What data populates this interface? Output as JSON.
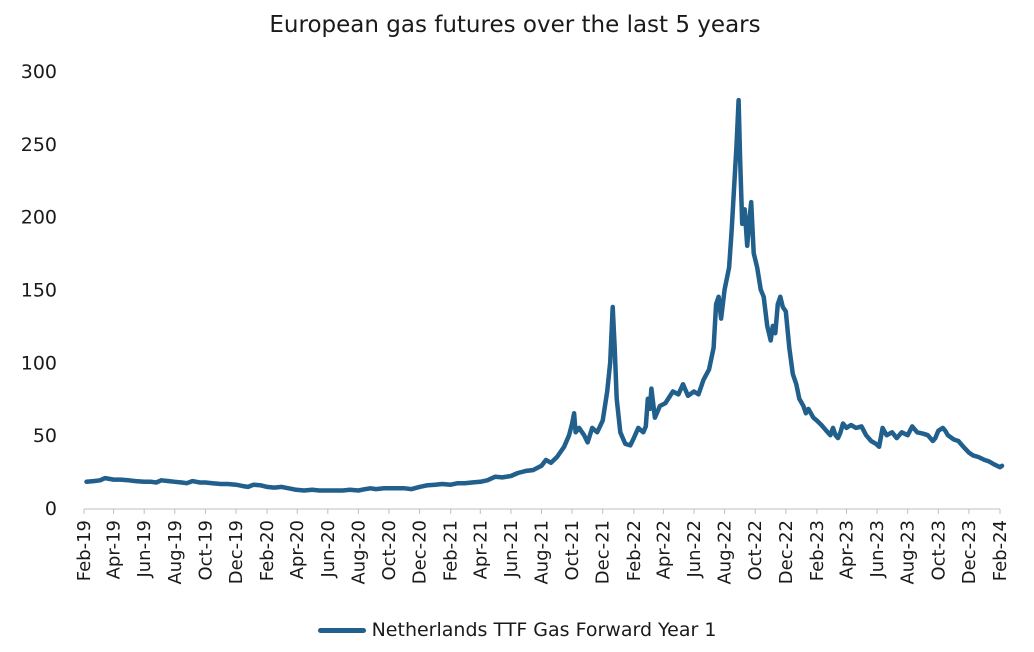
{
  "chart_data": {
    "type": "line",
    "title": "European gas futures over the last 5 years",
    "xlabel": "",
    "ylabel": "",
    "ylim": [
      0,
      300
    ],
    "yticks": [
      0,
      50,
      100,
      150,
      200,
      250,
      300
    ],
    "xticks": [
      "Feb-19",
      "Apr-19",
      "Jun-19",
      "Aug-19",
      "Oct-19",
      "Dec-19",
      "Feb-20",
      "Apr-20",
      "Jun-20",
      "Aug-20",
      "Oct-20",
      "Dec-20",
      "Feb-21",
      "Apr-21",
      "Jun-21",
      "Aug-21",
      "Oct-21",
      "Dec-21",
      "Feb-22",
      "Apr-22",
      "Jun-22",
      "Aug-22",
      "Oct-22",
      "Dec-22",
      "Feb-23",
      "Apr-23",
      "Jun-23",
      "Aug-23",
      "Oct-23",
      "Dec-23",
      "Feb-24"
    ],
    "grid": false,
    "legend_position": "bottom",
    "series": [
      {
        "name": "Netherlands TTF Gas Forward Year 1",
        "color": "#215f8c",
        "points": [
          [
            "2019-02-06",
            18
          ],
          [
            "2019-02-20",
            18.5
          ],
          [
            "2019-03-05",
            19
          ],
          [
            "2019-03-15",
            20.5
          ],
          [
            "2019-04-01",
            19.5
          ],
          [
            "2019-04-15",
            19.5
          ],
          [
            "2019-05-01",
            19
          ],
          [
            "2019-05-15",
            18.5
          ],
          [
            "2019-06-01",
            18
          ],
          [
            "2019-06-15",
            18
          ],
          [
            "2019-06-25",
            17.5
          ],
          [
            "2019-07-05",
            19
          ],
          [
            "2019-07-20",
            18.5
          ],
          [
            "2019-08-01",
            18
          ],
          [
            "2019-08-15",
            17.5
          ],
          [
            "2019-08-25",
            17
          ],
          [
            "2019-09-05",
            18.5
          ],
          [
            "2019-09-20",
            17.5
          ],
          [
            "2019-10-01",
            17.5
          ],
          [
            "2019-10-15",
            17
          ],
          [
            "2019-11-01",
            16.5
          ],
          [
            "2019-11-15",
            16.5
          ],
          [
            "2019-12-01",
            16
          ],
          [
            "2019-12-15",
            15
          ],
          [
            "2019-12-25",
            14.5
          ],
          [
            "2020-01-05",
            16
          ],
          [
            "2020-01-20",
            15.5
          ],
          [
            "2020-02-01",
            14.5
          ],
          [
            "2020-02-15",
            14
          ],
          [
            "2020-03-01",
            14.5
          ],
          [
            "2020-03-15",
            13.5
          ],
          [
            "2020-03-30",
            12.5
          ],
          [
            "2020-04-15",
            12
          ],
          [
            "2020-05-01",
            12.5
          ],
          [
            "2020-05-15",
            12
          ],
          [
            "2020-06-01",
            12
          ],
          [
            "2020-06-15",
            12
          ],
          [
            "2020-07-01",
            12
          ],
          [
            "2020-07-15",
            12.5
          ],
          [
            "2020-08-01",
            12
          ],
          [
            "2020-08-15",
            13
          ],
          [
            "2020-08-25",
            13.5
          ],
          [
            "2020-09-05",
            13
          ],
          [
            "2020-09-20",
            13.5
          ],
          [
            "2020-10-01",
            13.5
          ],
          [
            "2020-10-15",
            13.5
          ],
          [
            "2020-11-01",
            13.5
          ],
          [
            "2020-11-15",
            13
          ],
          [
            "2020-12-01",
            14.5
          ],
          [
            "2020-12-15",
            15.5
          ],
          [
            "2021-01-01",
            16
          ],
          [
            "2021-01-15",
            16.5
          ],
          [
            "2021-02-01",
            16
          ],
          [
            "2021-02-15",
            17
          ],
          [
            "2021-03-01",
            17
          ],
          [
            "2021-03-15",
            17.5
          ],
          [
            "2021-04-01",
            18
          ],
          [
            "2021-04-15",
            19
          ],
          [
            "2021-05-01",
            21.5
          ],
          [
            "2021-05-15",
            21
          ],
          [
            "2021-06-01",
            22
          ],
          [
            "2021-06-15",
            24
          ],
          [
            "2021-07-01",
            25.5
          ],
          [
            "2021-07-15",
            26
          ],
          [
            "2021-08-01",
            29
          ],
          [
            "2021-08-10",
            33
          ],
          [
            "2021-08-20",
            31
          ],
          [
            "2021-09-01",
            35
          ],
          [
            "2021-09-15",
            42
          ],
          [
            "2021-09-25",
            50
          ],
          [
            "2021-10-01",
            58
          ],
          [
            "2021-10-05",
            65
          ],
          [
            "2021-10-08",
            52
          ],
          [
            "2021-10-15",
            55
          ],
          [
            "2021-10-25",
            50
          ],
          [
            "2021-11-01",
            45
          ],
          [
            "2021-11-10",
            55
          ],
          [
            "2021-11-20",
            52
          ],
          [
            "2021-12-01",
            60
          ],
          [
            "2021-12-10",
            80
          ],
          [
            "2021-12-16",
            100
          ],
          [
            "2021-12-21",
            138
          ],
          [
            "2021-12-25",
            110
          ],
          [
            "2021-12-29",
            75
          ],
          [
            "2022-01-05",
            52
          ],
          [
            "2022-01-15",
            44
          ],
          [
            "2022-01-25",
            43
          ],
          [
            "2022-02-01",
            48
          ],
          [
            "2022-02-10",
            55
          ],
          [
            "2022-02-20",
            52
          ],
          [
            "2022-02-25",
            56
          ],
          [
            "2022-03-01",
            75
          ],
          [
            "2022-03-05",
            68
          ],
          [
            "2022-03-08",
            82
          ],
          [
            "2022-03-15",
            62
          ],
          [
            "2022-03-25",
            70
          ],
          [
            "2022-04-05",
            72
          ],
          [
            "2022-04-20",
            80
          ],
          [
            "2022-05-01",
            78
          ],
          [
            "2022-05-10",
            85
          ],
          [
            "2022-05-20",
            77
          ],
          [
            "2022-06-01",
            80
          ],
          [
            "2022-06-10",
            78
          ],
          [
            "2022-06-20",
            88
          ],
          [
            "2022-07-01",
            95
          ],
          [
            "2022-07-10",
            110
          ],
          [
            "2022-07-15",
            140
          ],
          [
            "2022-07-20",
            145
          ],
          [
            "2022-07-25",
            130
          ],
          [
            "2022-08-01",
            150
          ],
          [
            "2022-08-10",
            165
          ],
          [
            "2022-08-15",
            190
          ],
          [
            "2022-08-20",
            220
          ],
          [
            "2022-08-25",
            250
          ],
          [
            "2022-08-29",
            280
          ],
          [
            "2022-09-01",
            240
          ],
          [
            "2022-09-05",
            195
          ],
          [
            "2022-09-10",
            205
          ],
          [
            "2022-09-15",
            180
          ],
          [
            "2022-09-20",
            200
          ],
          [
            "2022-09-23",
            210
          ],
          [
            "2022-09-28",
            175
          ],
          [
            "2022-10-05",
            165
          ],
          [
            "2022-10-12",
            150
          ],
          [
            "2022-10-18",
            145
          ],
          [
            "2022-10-25",
            125
          ],
          [
            "2022-11-01",
            115
          ],
          [
            "2022-11-05",
            125
          ],
          [
            "2022-11-10",
            120
          ],
          [
            "2022-11-15",
            140
          ],
          [
            "2022-11-20",
            145
          ],
          [
            "2022-11-25",
            138
          ],
          [
            "2022-12-01",
            135
          ],
          [
            "2022-12-08",
            110
          ],
          [
            "2022-12-15",
            92
          ],
          [
            "2022-12-22",
            85
          ],
          [
            "2022-12-28",
            75
          ],
          [
            "2023-01-05",
            70
          ],
          [
            "2023-01-10",
            65
          ],
          [
            "2023-01-15",
            68
          ],
          [
            "2023-01-25",
            62
          ],
          [
            "2023-02-01",
            60
          ],
          [
            "2023-02-10",
            57
          ],
          [
            "2023-02-20",
            53
          ],
          [
            "2023-02-28",
            50
          ],
          [
            "2023-03-05",
            55
          ],
          [
            "2023-03-10",
            50
          ],
          [
            "2023-03-15",
            48
          ],
          [
            "2023-03-20",
            52
          ],
          [
            "2023-03-25",
            58
          ],
          [
            "2023-04-01",
            55
          ],
          [
            "2023-04-10",
            57
          ],
          [
            "2023-04-20",
            55
          ],
          [
            "2023-05-01",
            56
          ],
          [
            "2023-05-10",
            50
          ],
          [
            "2023-05-20",
            46
          ],
          [
            "2023-05-30",
            44
          ],
          [
            "2023-06-05",
            42
          ],
          [
            "2023-06-12",
            55
          ],
          [
            "2023-06-20",
            50
          ],
          [
            "2023-07-01",
            52
          ],
          [
            "2023-07-10",
            48
          ],
          [
            "2023-07-20",
            52
          ],
          [
            "2023-08-01",
            50
          ],
          [
            "2023-08-10",
            56
          ],
          [
            "2023-08-20",
            52
          ],
          [
            "2023-09-01",
            51
          ],
          [
            "2023-09-10",
            50
          ],
          [
            "2023-09-20",
            46
          ],
          [
            "2023-09-25",
            48
          ],
          [
            "2023-10-01",
            53
          ],
          [
            "2023-10-10",
            55
          ],
          [
            "2023-10-15",
            53
          ],
          [
            "2023-10-20",
            50
          ],
          [
            "2023-11-01",
            47
          ],
          [
            "2023-11-10",
            46
          ],
          [
            "2023-11-20",
            42
          ],
          [
            "2023-12-01",
            38
          ],
          [
            "2023-12-10",
            36
          ],
          [
            "2023-12-20",
            35
          ],
          [
            "2024-01-01",
            33
          ],
          [
            "2024-01-10",
            32
          ],
          [
            "2024-01-20",
            30
          ],
          [
            "2024-02-01",
            28
          ],
          [
            "2024-02-05",
            29
          ]
        ]
      }
    ]
  }
}
